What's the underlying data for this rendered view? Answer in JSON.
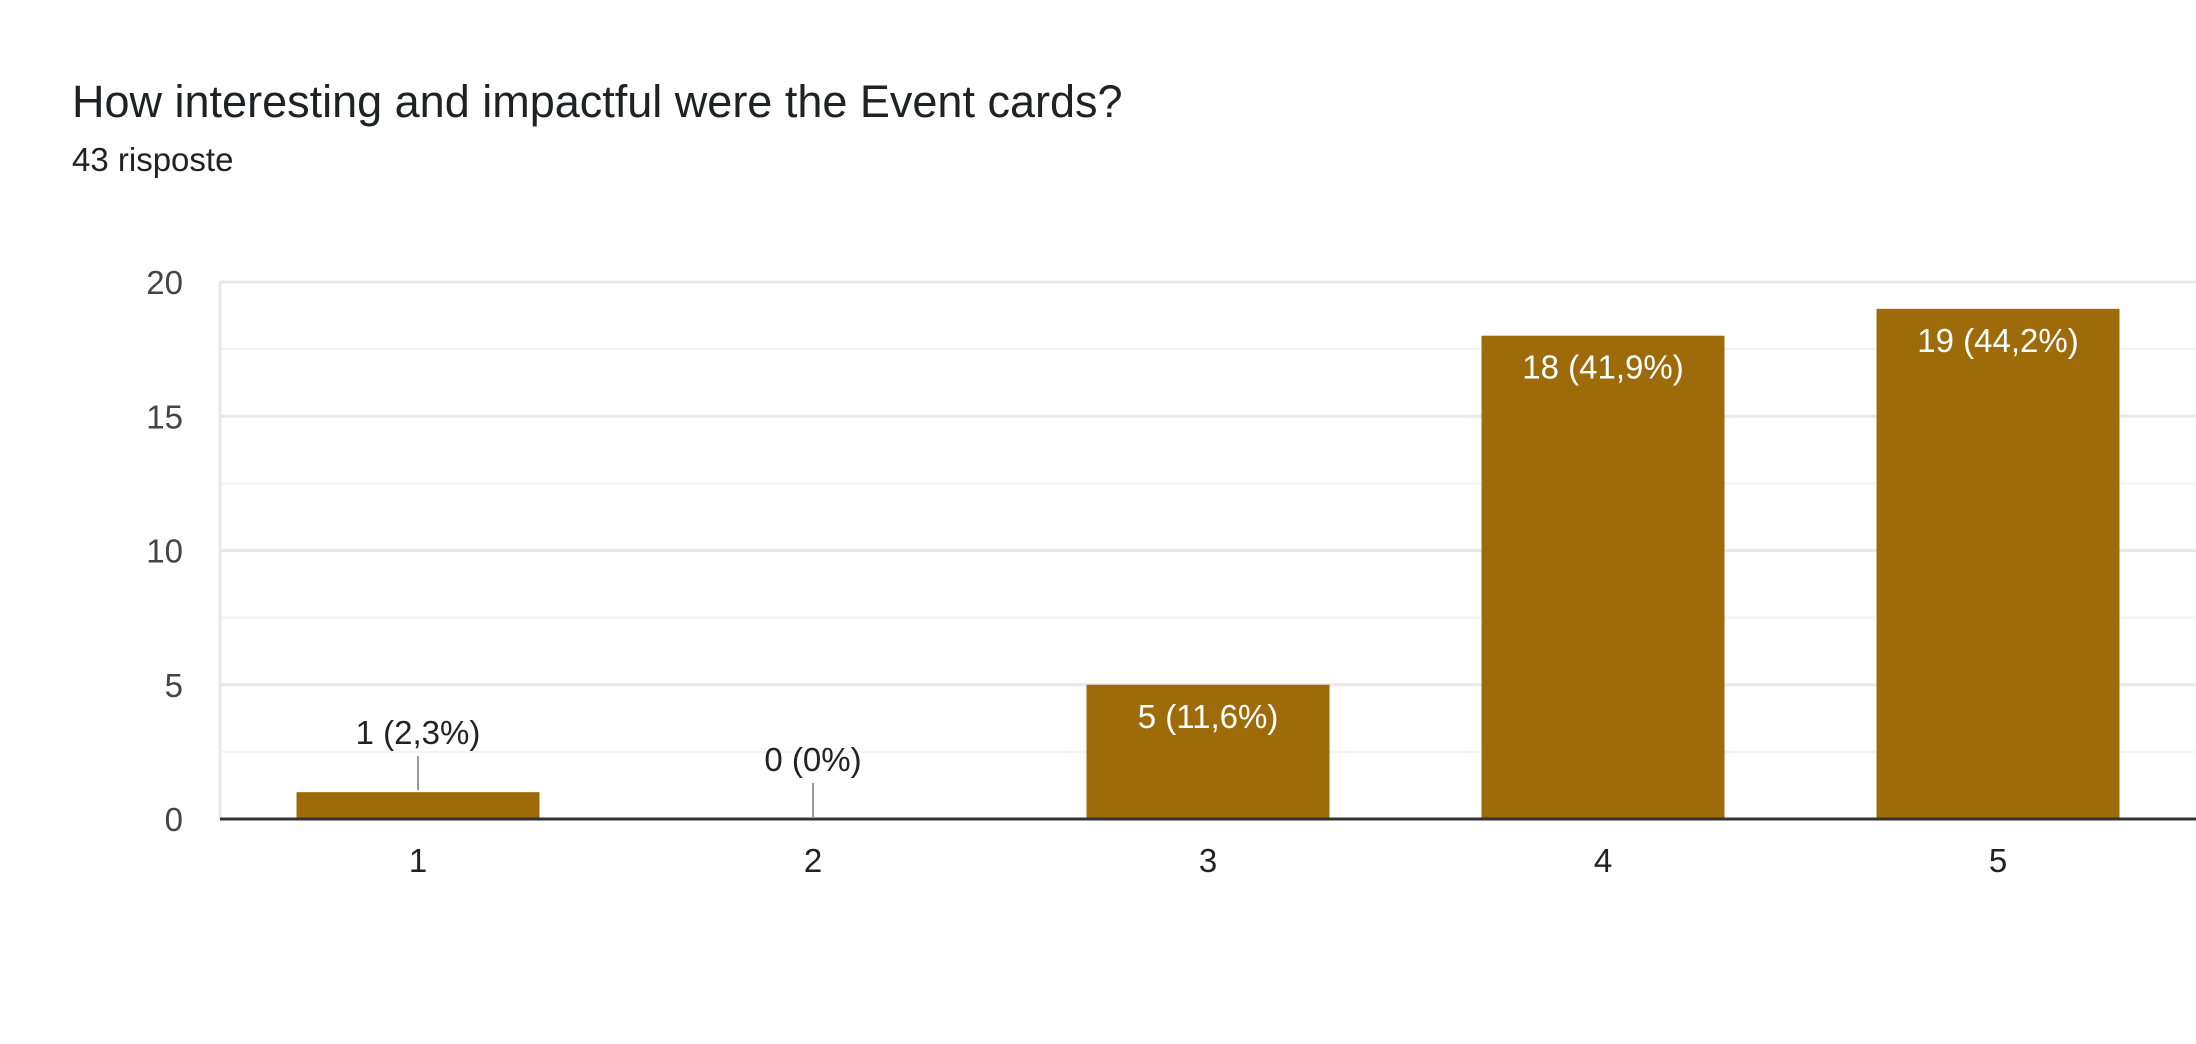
{
  "header": {
    "title": "How interesting and impactful were the Event cards?",
    "responses": "43 risposte"
  },
  "colors": {
    "bar": "#9E6B0B",
    "grid_major": "#e8e8e8",
    "grid_minor": "#f3f3f3",
    "axis": "#333333",
    "leader": "#999999"
  },
  "chart_data": {
    "type": "bar",
    "title": "How interesting and impactful were the Event cards?",
    "subtitle": "43 risposte",
    "categories": [
      "1",
      "2",
      "3",
      "4",
      "5"
    ],
    "values": [
      1,
      0,
      5,
      18,
      19
    ],
    "data_labels": [
      "1 (2,3%)",
      "0 (0%)",
      "5 (11,6%)",
      "18 (41,9%)",
      "19 (44,2%)"
    ],
    "xlabel": "",
    "ylabel": "",
    "ylim": [
      0,
      20
    ],
    "yticks": [
      "0",
      "5",
      "10",
      "15",
      "20"
    ],
    "grid": true,
    "legend": "none"
  }
}
